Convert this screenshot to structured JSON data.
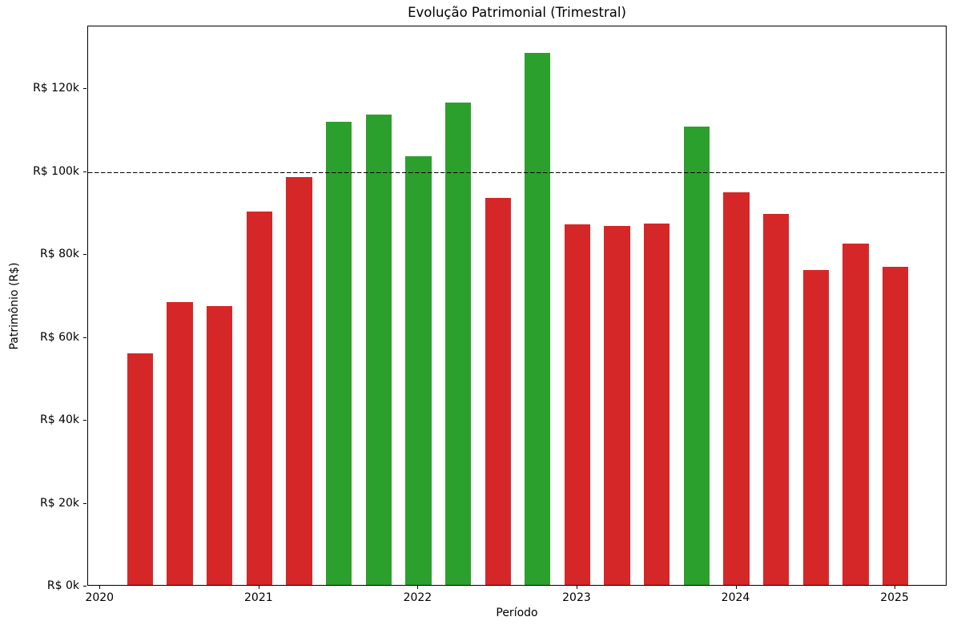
{
  "chart_data": {
    "type": "bar",
    "title": "Evolução Patrimonial (Trimestral)",
    "xlabel": "Período",
    "ylabel": "Patrimônio (R$)",
    "x": [
      2020.25,
      2020.5,
      2020.75,
      2021.0,
      2021.25,
      2021.5,
      2021.75,
      2022.0,
      2022.25,
      2022.5,
      2022.75,
      2023.0,
      2023.25,
      2023.5,
      2023.75,
      2024.0,
      2024.25,
      2024.5,
      2024.75,
      2025.0
    ],
    "values": [
      55800,
      68300,
      67300,
      90000,
      98300,
      111800,
      113500,
      103500,
      116400,
      93300,
      128300,
      87000,
      86600,
      87200,
      110600,
      94800,
      89400,
      76000,
      82300,
      76700
    ],
    "threshold_line": {
      "value": 100000,
      "color": "#000000",
      "style": "dashed"
    },
    "color_rule": "green if value >= 100000 else red",
    "colors": {
      "above_threshold": "#2ca02c",
      "below_threshold": "#d62728"
    },
    "bar_width_x": 0.1625,
    "xlim": [
      2019.923,
      2025.327
    ],
    "ylim": [
      0,
      135100
    ],
    "x_ticks": [
      {
        "value": 2020,
        "label": "2020"
      },
      {
        "value": 2021,
        "label": "2021"
      },
      {
        "value": 2022,
        "label": "2022"
      },
      {
        "value": 2023,
        "label": "2023"
      },
      {
        "value": 2024,
        "label": "2024"
      },
      {
        "value": 2025,
        "label": "2025"
      }
    ],
    "y_ticks": [
      {
        "value": 0,
        "label": "R$ 0k"
      },
      {
        "value": 20000,
        "label": "R$ 20k"
      },
      {
        "value": 40000,
        "label": "R$ 40k"
      },
      {
        "value": 60000,
        "label": "R$ 60k"
      },
      {
        "value": 80000,
        "label": "R$ 80k"
      },
      {
        "value": 100000,
        "label": "R$ 100k"
      },
      {
        "value": 120000,
        "label": "R$ 120k"
      }
    ],
    "grid": false,
    "legend": null
  }
}
